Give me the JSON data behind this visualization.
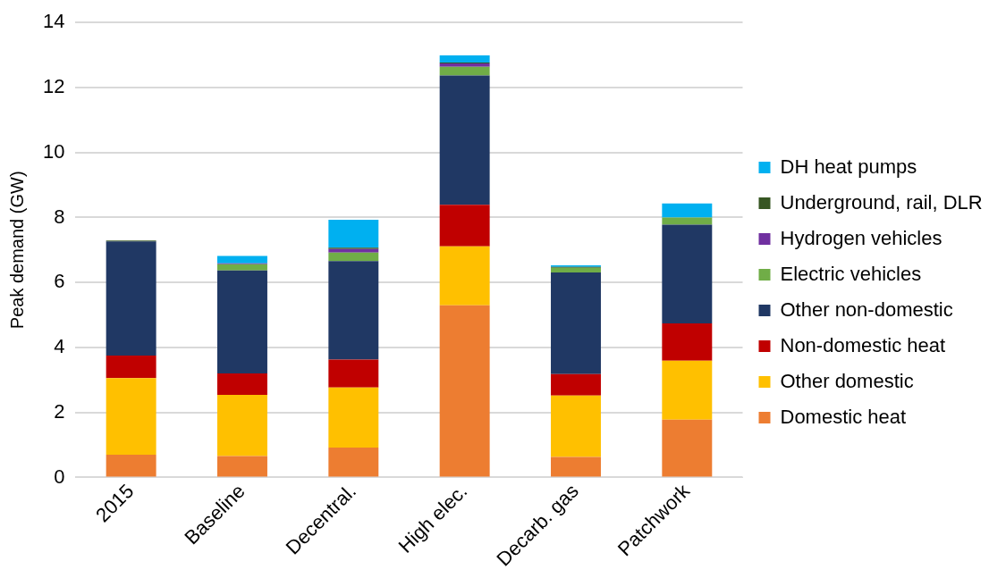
{
  "chart_data": {
    "type": "bar",
    "stacked": true,
    "ylabel": "Peak demand (GW)",
    "categories": [
      "2015",
      "Baseline",
      "Decentral.",
      "High elec.",
      "Decarb. gas",
      "Patchwork"
    ],
    "ylim": [
      0,
      14
    ],
    "yticks": [
      0,
      2,
      4,
      6,
      8,
      10,
      12,
      14
    ],
    "grid": "y",
    "legend": "right",
    "series": [
      {
        "name": "Domestic heat",
        "color": "#ed7d31",
        "values": [
          0.7,
          0.66,
          0.92,
          5.3,
          0.63,
          1.78
        ]
      },
      {
        "name": "Other domestic",
        "color": "#ffc000",
        "values": [
          2.36,
          1.88,
          1.85,
          1.81,
          1.89,
          1.81
        ]
      },
      {
        "name": "Non-domestic heat",
        "color": "#c00000",
        "values": [
          0.69,
          0.66,
          0.86,
          1.28,
          0.66,
          1.15
        ]
      },
      {
        "name": "Other non-domestic",
        "color": "#203864",
        "values": [
          3.51,
          3.17,
          3.03,
          3.98,
          3.13,
          3.04
        ]
      },
      {
        "name": "Electric vehicles",
        "color": "#70ad47",
        "values": [
          null,
          0.19,
          0.26,
          0.27,
          0.14,
          0.22
        ]
      },
      {
        "name": "Hydrogen vehicles",
        "color": "#7030a0",
        "values": [
          0,
          0.03,
          0.11,
          0.1,
          0,
          0
        ]
      },
      {
        "name": "Underground, rail, DLR",
        "color": "#375623",
        "values": [
          0.03,
          0,
          0.04,
          0.03,
          0.03,
          0
        ]
      },
      {
        "name": "DH heat pumps",
        "color": "#00b0f0",
        "values": [
          0,
          0.23,
          0.86,
          0.22,
          0.05,
          0.43
        ]
      }
    ]
  }
}
